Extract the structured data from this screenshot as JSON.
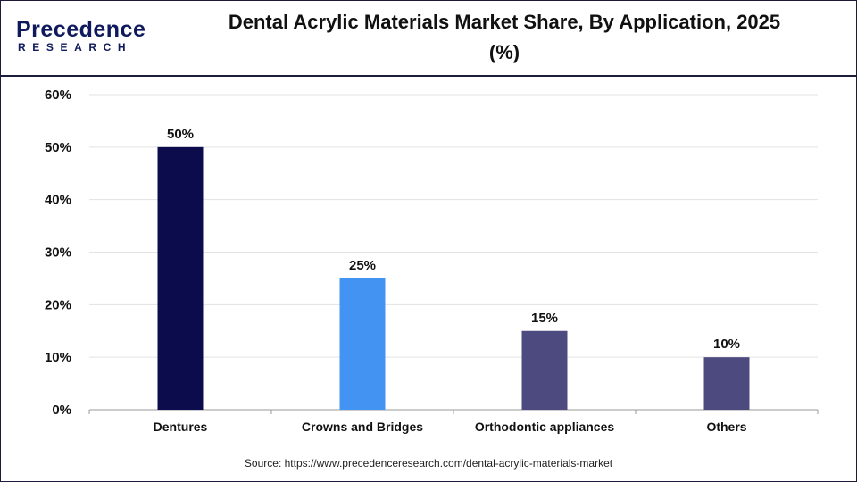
{
  "header": {
    "logo_main": "Precedence",
    "logo_sub": "RESEARCH",
    "title_line1": "Dental Acrylic Materials Market Share, By Application, 2025",
    "title_line2": "(%)"
  },
  "chart_data": {
    "type": "bar",
    "title": "Dental Acrylic Materials Market Share, By Application, 2025 (%)",
    "categories": [
      "Dentures",
      "Crowns and Bridges",
      "Orthodontic appliances",
      "Others"
    ],
    "values": [
      50,
      25,
      15,
      10
    ],
    "data_labels": [
      "50%",
      "25%",
      "15%",
      "10%"
    ],
    "bar_colors": [
      "#0c0c4d",
      "#4393f3",
      "#4d4a80",
      "#4d4a80"
    ],
    "yticks": [
      "0%",
      "10%",
      "20%",
      "30%",
      "40%",
      "50%",
      "60%"
    ],
    "ylim": [
      0,
      60
    ],
    "xlabel": "",
    "ylabel": "",
    "grid": true,
    "legend": "none"
  },
  "footer": {
    "source": "Source: https://www.precedenceresearch.com/dental-acrylic-materials-market"
  }
}
